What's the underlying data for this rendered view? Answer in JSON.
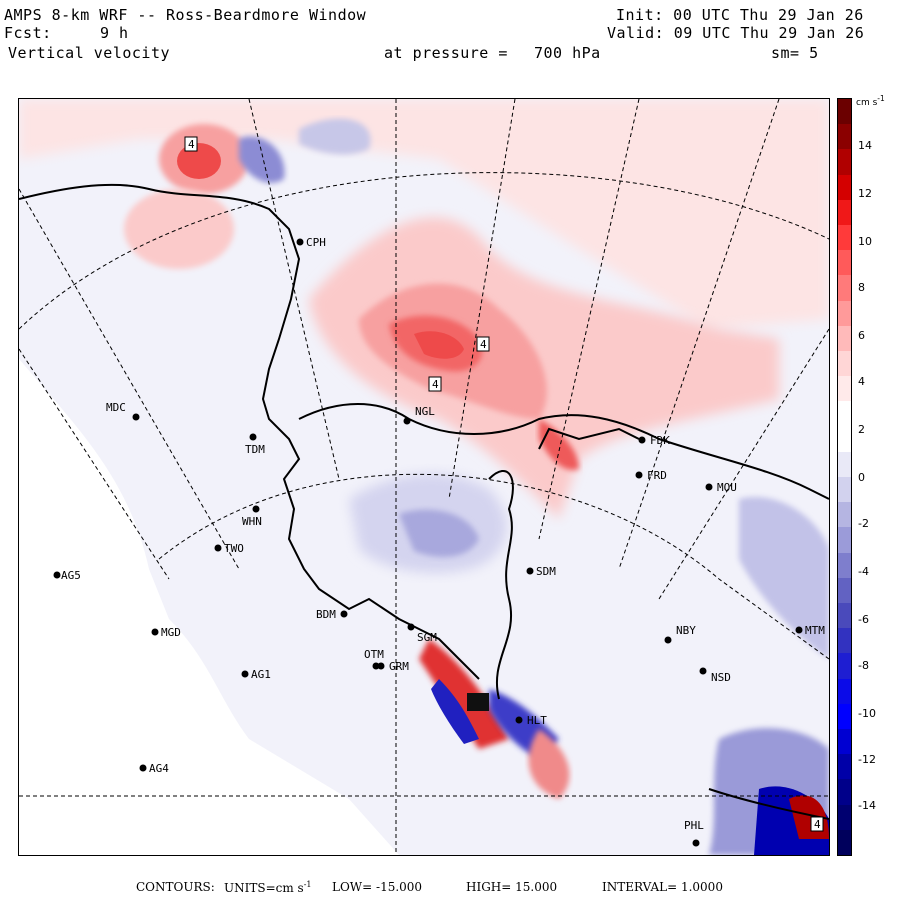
{
  "header": {
    "title": "AMPS 8-km WRF -- Ross-Beardmore Window",
    "fcst_label": "Fcst:",
    "fcst_value": "9 h",
    "field": "Vertical velocity",
    "pressure_label": "at pressure =",
    "pressure_value": "700 hPa",
    "smoothing": "sm= 5",
    "init": "Init: 00 UTC Thu 29 Jan 26",
    "valid": "Valid: 09 UTC Thu 29 Jan 26"
  },
  "colorbar": {
    "unit": "cm s",
    "unit_exp": "-1",
    "ticks": [
      "14",
      "12",
      "10",
      "8",
      "6",
      "4",
      "2",
      "0",
      "-2",
      "-4",
      "-6",
      "-8",
      "-10",
      "-12",
      "-14"
    ],
    "colors": [
      "#6b0000",
      "#8b0000",
      "#b00000",
      "#d40000",
      "#f01818",
      "#ff3a3a",
      "#ff5a5a",
      "#ff7a7a",
      "#ff9a9a",
      "#ffbaba",
      "#ffd6d6",
      "#ffeaea",
      "#ffffff",
      "#ffffff",
      "#e9e9f7",
      "#d2d2ee",
      "#b5b5e2",
      "#9b9bd9",
      "#7e7ecd",
      "#6262c2",
      "#4a4abb",
      "#3232c0",
      "#1e1ed2",
      "#0b0be8",
      "#0000ff",
      "#0000d2",
      "#0000a8",
      "#00008a",
      "#000070",
      "#00005c"
    ]
  },
  "stations": [
    {
      "id": "CPH"
    },
    {
      "id": "MDC"
    },
    {
      "id": "NGL"
    },
    {
      "id": "FDK"
    },
    {
      "id": "TDM"
    },
    {
      "id": "FRD"
    },
    {
      "id": "MOU"
    },
    {
      "id": "WHN"
    },
    {
      "id": "TWO"
    },
    {
      "id": "AG5"
    },
    {
      "id": "SDM"
    },
    {
      "id": "BDM"
    },
    {
      "id": "MGD"
    },
    {
      "id": "NBY"
    },
    {
      "id": "MTM"
    },
    {
      "id": "OTM"
    },
    {
      "id": "GRM"
    },
    {
      "id": "AG1"
    },
    {
      "id": "NSD"
    },
    {
      "id": "HLT"
    },
    {
      "id": "AG4"
    },
    {
      "id": "PHL"
    },
    {
      "id": "SGM"
    }
  ],
  "contour_markers": [
    {
      "label": "4"
    },
    {
      "label": "4"
    },
    {
      "label": "4"
    },
    {
      "label": "4"
    }
  ],
  "footer": {
    "contours": "CONTOURS:",
    "units_label": "UNITS=cm s",
    "units_exp": "-1",
    "low": "LOW= -15.000",
    "high": "HIGH= 15.000",
    "interval": "INTERVAL= 1.0000"
  }
}
